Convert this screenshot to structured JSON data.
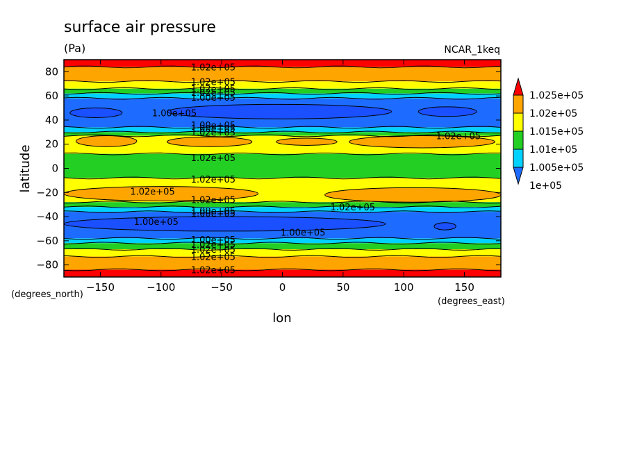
{
  "chart_data": {
    "type": "heatmap",
    "title": "surface air pressure",
    "units": "(Pa)",
    "dataset": "NCAR_1keq",
    "xlabel": "lon",
    "ylabel": "latitude",
    "x_units": "(degrees_east)",
    "y_units": "(degrees_north)",
    "xlim": [
      -180,
      180
    ],
    "ylim": [
      -90,
      90
    ],
    "x_ticks": [
      -150,
      -100,
      -50,
      0,
      50,
      100,
      150
    ],
    "y_ticks": [
      -80,
      -60,
      -40,
      -20,
      0,
      20,
      40,
      60,
      80
    ],
    "colorbar": {
      "levels": [
        "1e+05",
        "1.005e+05",
        "1.01e+05",
        "1.015e+05",
        "1.02e+05",
        "1.025e+05"
      ],
      "colors": [
        "#1e6cff",
        "#00d2ff",
        "#23cf23",
        "#ffff00",
        "#ffa500",
        "#ff0000"
      ],
      "extend": "both"
    },
    "latitude_bands": [
      {
        "lat_top": 90,
        "lat_bottom": 84,
        "color": "#ff0000"
      },
      {
        "lat_top": 84,
        "lat_bottom": 72,
        "color": "#ffa500"
      },
      {
        "lat_top": 72,
        "lat_bottom": 66,
        "color": "#ffff00"
      },
      {
        "lat_top": 66,
        "lat_bottom": 62,
        "color": "#23cf23"
      },
      {
        "lat_top": 62,
        "lat_bottom": 58,
        "color": "#00d2ff"
      },
      {
        "lat_top": 58,
        "lat_bottom": 34,
        "color": "#1e6cff"
      },
      {
        "lat_top": 34,
        "lat_bottom": 30,
        "color": "#00d2ff"
      },
      {
        "lat_top": 30,
        "lat_bottom": 27,
        "color": "#23cf23"
      },
      {
        "lat_top": 27,
        "lat_bottom": 12,
        "color": "#ffff00"
      },
      {
        "lat_top": 12,
        "lat_bottom": -8,
        "color": "#23cf23"
      },
      {
        "lat_top": -8,
        "lat_bottom": -28,
        "color": "#ffff00"
      },
      {
        "lat_top": -28,
        "lat_bottom": -32,
        "color": "#23cf23"
      },
      {
        "lat_top": -32,
        "lat_bottom": -36,
        "color": "#00d2ff"
      },
      {
        "lat_top": -36,
        "lat_bottom": -58,
        "color": "#1e6cff"
      },
      {
        "lat_top": -58,
        "lat_bottom": -62,
        "color": "#00d2ff"
      },
      {
        "lat_top": -62,
        "lat_bottom": -67,
        "color": "#23cf23"
      },
      {
        "lat_top": -67,
        "lat_bottom": -73,
        "color": "#ffff00"
      },
      {
        "lat_top": -73,
        "lat_bottom": -84,
        "color": "#ffa500"
      },
      {
        "lat_top": -84,
        "lat_bottom": -90,
        "color": "#ff0000"
      }
    ],
    "regions": [
      {
        "color": "#1a50ff",
        "lon_min": -175,
        "lon_max": -132,
        "lat_min": 42,
        "lat_max": 50
      },
      {
        "color": "#1a50ff",
        "lon_min": -95,
        "lon_max": 90,
        "lat_min": 41,
        "lat_max": 53
      },
      {
        "color": "#1a50ff",
        "lon_min": 112,
        "lon_max": 160,
        "lat_min": 43,
        "lat_max": 51
      },
      {
        "color": "#ffa500",
        "lon_min": -170,
        "lon_max": -120,
        "lat_min": 18,
        "lat_max": 27
      },
      {
        "color": "#ffa500",
        "lon_min": -95,
        "lon_max": -25,
        "lat_min": 18,
        "lat_max": 26
      },
      {
        "color": "#ffa500",
        "lon_min": -5,
        "lon_max": 45,
        "lat_min": 19,
        "lat_max": 25
      },
      {
        "color": "#ffa500",
        "lon_min": 55,
        "lon_max": 175,
        "lat_min": 17,
        "lat_max": 27
      },
      {
        "color": "#ffa500",
        "lon_min": -180,
        "lon_max": -20,
        "lat_min": -27,
        "lat_max": -15
      },
      {
        "color": "#ffa500",
        "lon_min": 35,
        "lon_max": 180,
        "lat_min": -28,
        "lat_max": -16
      },
      {
        "color": "#1a50ff",
        "lon_min": -180,
        "lon_max": 85,
        "lat_min": -52,
        "lat_max": -40
      },
      {
        "color": "#1a50ff",
        "lon_min": 125,
        "lon_max": 143,
        "lat_min": -51,
        "lat_max": -45
      }
    ],
    "contour_labels": [
      {
        "text": "1.02e+05",
        "lon": -57,
        "lat": 84
      },
      {
        "text": "1.02e+05",
        "lon": -57,
        "lat": 72
      },
      {
        "text": "1.02e+05",
        "lon": -57,
        "lat": 66
      },
      {
        "text": "1.02e+05",
        "lon": -57,
        "lat": 63
      },
      {
        "text": "1.00e+05",
        "lon": -57,
        "lat": 59
      },
      {
        "text": "1.00e+05",
        "lon": -89,
        "lat": 46
      },
      {
        "text": "1.00e+05",
        "lon": -57,
        "lat": 36
      },
      {
        "text": "1.00e+05",
        "lon": -57,
        "lat": 33
      },
      {
        "text": "1.02e+05",
        "lon": -57,
        "lat": 30
      },
      {
        "text": "1.02e+05",
        "lon": 145,
        "lat": 27
      },
      {
        "text": "1.02e+05",
        "lon": -57,
        "lat": 9
      },
      {
        "text": "1.02e+05",
        "lon": -57,
        "lat": -9
      },
      {
        "text": "1.02e+05",
        "lon": -107,
        "lat": -19
      },
      {
        "text": "1.02e+05",
        "lon": -57,
        "lat": -26
      },
      {
        "text": "1.00e+05",
        "lon": -57,
        "lat": -35
      },
      {
        "text": "1.00e+05",
        "lon": -57,
        "lat": -37
      },
      {
        "text": "1.02e+05",
        "lon": 58,
        "lat": -32
      },
      {
        "text": "1.00e+05",
        "lon": -104,
        "lat": -44
      },
      {
        "text": "1.00e+05",
        "lon": 17,
        "lat": -53
      },
      {
        "text": "1.00e+05",
        "lon": -57,
        "lat": -59
      },
      {
        "text": "1.02e+05",
        "lon": -57,
        "lat": -63
      },
      {
        "text": "1.02e+05",
        "lon": -57,
        "lat": -67
      },
      {
        "text": "1.02e+05",
        "lon": -57,
        "lat": -73
      },
      {
        "text": "1.02e+05",
        "lon": -57,
        "lat": -84
      }
    ],
    "contour_lines_lat": [
      84,
      72,
      66,
      62,
      58,
      34,
      30,
      27,
      12,
      -8,
      -28,
      -32,
      -36,
      -58,
      -62,
      -67,
      -73,
      -84
    ],
    "grid": false,
    "legend_position": "right"
  }
}
